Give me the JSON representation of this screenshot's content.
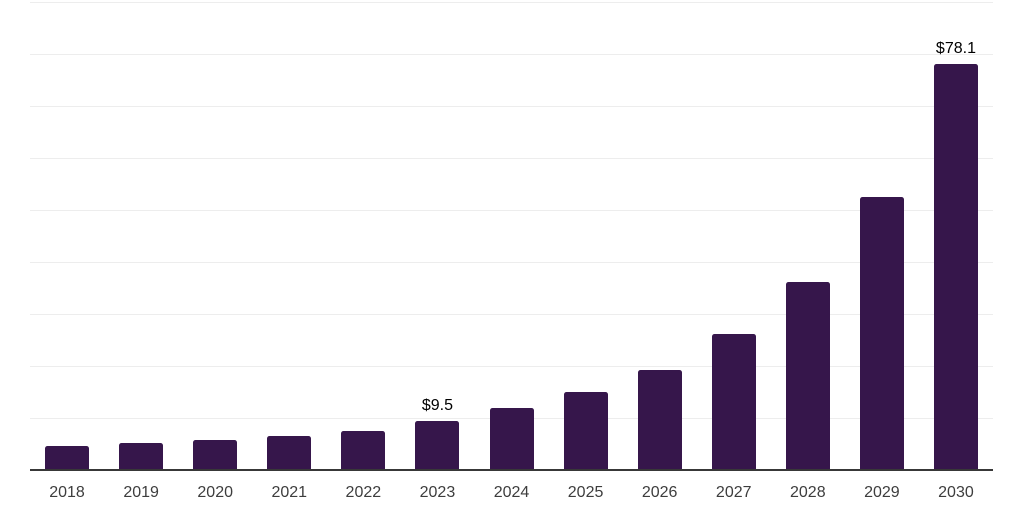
{
  "chart_data": {
    "type": "bar",
    "title": "",
    "xlabel": "",
    "ylabel": "",
    "categories": [
      "2018",
      "2019",
      "2020",
      "2021",
      "2022",
      "2023",
      "2024",
      "2025",
      "2026",
      "2027",
      "2028",
      "2029",
      "2030"
    ],
    "values": [
      4.6,
      5.1,
      5.7,
      6.5,
      7.5,
      9.5,
      11.9,
      15.0,
      19.2,
      26.2,
      36.2,
      52.5,
      78.1
    ],
    "value_labels": [
      "",
      "",
      "",
      "",
      "",
      "$9.5",
      "",
      "",
      "",
      "",
      "",
      "",
      "$78.1"
    ],
    "ylim": [
      0,
      90
    ],
    "gridline_step": 10,
    "grid": "horizontal",
    "legend": "none",
    "y_tick_labels_shown": false,
    "colors": {
      "bar": "#36164B",
      "gridline": "#ededed",
      "axis_line": "#383838",
      "x_tick_text": "#3d3d3d",
      "value_label_text": "#000000",
      "background": "#ffffff"
    }
  }
}
